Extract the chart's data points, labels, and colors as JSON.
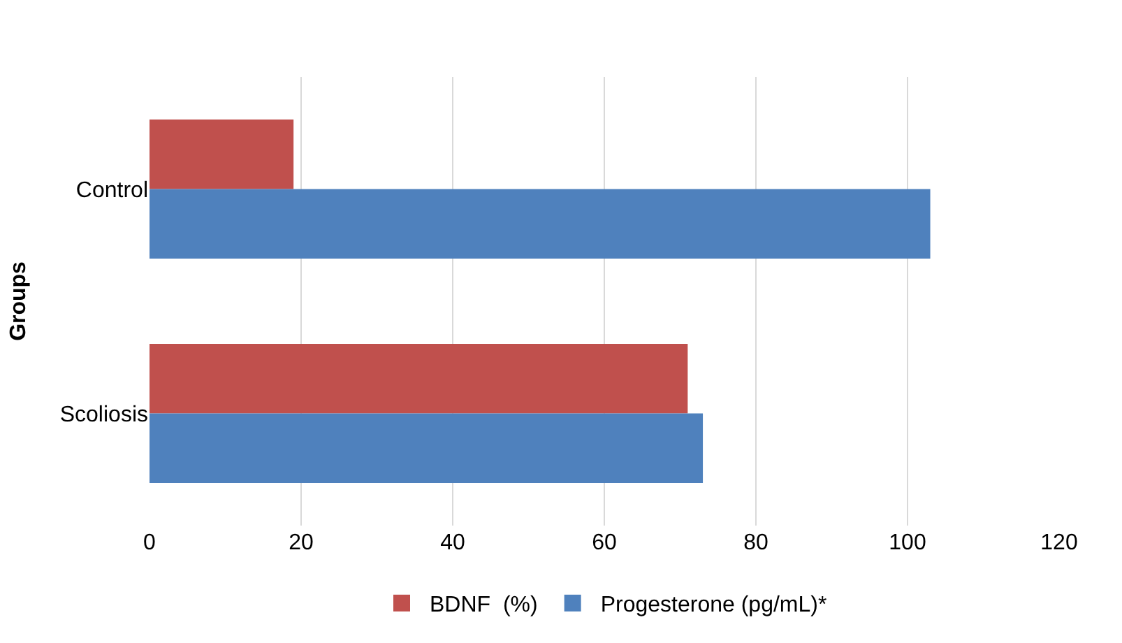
{
  "chart_data": {
    "type": "bar",
    "orientation": "horizontal",
    "ylabel": "Groups",
    "categories": [
      "Control",
      "Scoliosis"
    ],
    "series": [
      {
        "name": "BDNF  (%)",
        "color": "#c0504d",
        "values": [
          19,
          71
        ]
      },
      {
        "name": "Progesterone (pg/mL)*",
        "color": "#4f81bd",
        "values": [
          103,
          73
        ]
      }
    ],
    "xlim": [
      0,
      120
    ],
    "xticks": [
      0,
      20,
      40,
      60,
      80,
      100,
      120
    ],
    "grid": "x",
    "legend": "bottom"
  }
}
